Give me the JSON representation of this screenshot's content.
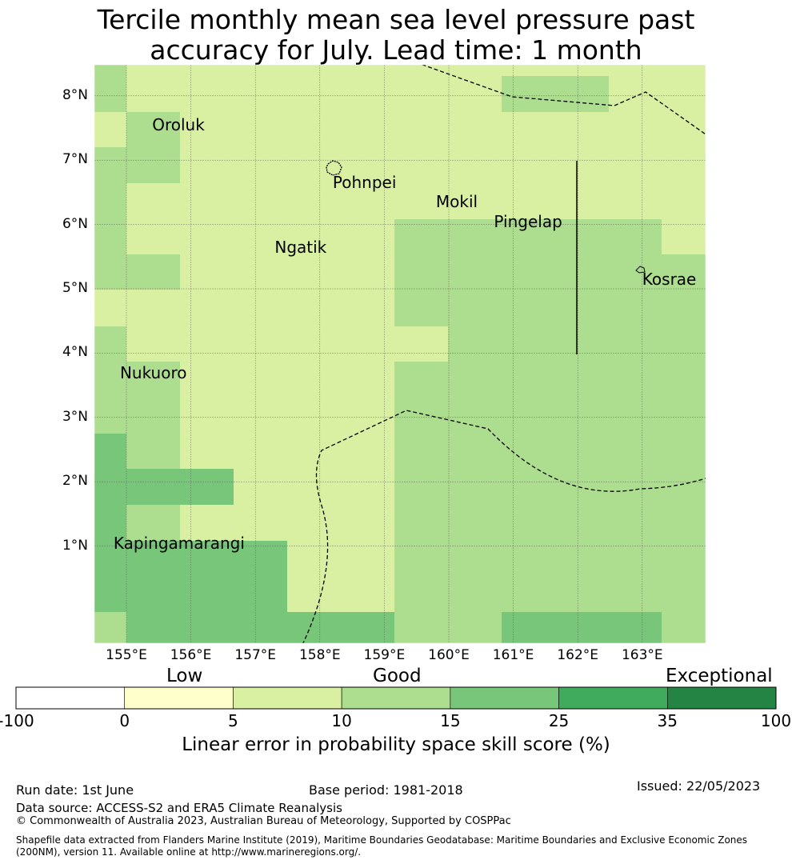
{
  "title_line1": "Tercile monthly mean sea level pressure past",
  "title_line2": "accuracy for July. Lead time: 1 month",
  "map": {
    "lat_ticks": [
      {
        "value": 8,
        "label": "8°N"
      },
      {
        "value": 7,
        "label": "7°N"
      },
      {
        "value": 6,
        "label": "6°N"
      },
      {
        "value": 5,
        "label": "5°N"
      },
      {
        "value": 4,
        "label": "4°N"
      },
      {
        "value": 3,
        "label": "3°N"
      },
      {
        "value": 2,
        "label": "2°N"
      },
      {
        "value": 1,
        "label": "1°N"
      }
    ],
    "lon_ticks": [
      {
        "value": 155,
        "label": "155°E"
      },
      {
        "value": 156,
        "label": "156°E"
      },
      {
        "value": 157,
        "label": "157°E"
      },
      {
        "value": 158,
        "label": "158°E"
      },
      {
        "value": 159,
        "label": "159°E"
      },
      {
        "value": 160,
        "label": "160°E"
      },
      {
        "value": 161,
        "label": "161°E"
      },
      {
        "value": 162,
        "label": "162°E"
      },
      {
        "value": 163,
        "label": "163°E"
      }
    ],
    "places": [
      {
        "name": "Oroluk",
        "lon": 155.4,
        "lat": 7.55
      },
      {
        "name": "Pohnpei",
        "lon": 158.2,
        "lat": 6.65
      },
      {
        "name": "Mokil",
        "lon": 159.8,
        "lat": 6.35
      },
      {
        "name": "Pingelap",
        "lon": 160.7,
        "lat": 6.05
      },
      {
        "name": "Ngatik",
        "lon": 157.3,
        "lat": 5.65
      },
      {
        "name": "Kosrae",
        "lon": 163.0,
        "lat": 5.15
      },
      {
        "name": "Nukuoro",
        "lon": 154.9,
        "lat": 3.7
      },
      {
        "name": "Kapingamarangi",
        "lon": 154.8,
        "lat": 1.05
      }
    ]
  },
  "colorbar": {
    "category_labels": [
      "Low",
      "Good",
      "Exceptional"
    ],
    "tick_labels": [
      "-100",
      "0",
      "5",
      "10",
      "15",
      "25",
      "35",
      "100"
    ],
    "colors": [
      "#ffffff",
      "#ffffcc",
      "#d9f0a3",
      "#addd8e",
      "#78c679",
      "#41ab5d",
      "#238443"
    ],
    "label": "Linear error in probability space skill score (%)"
  },
  "footer": {
    "run_date": "Run date: 1st June",
    "base_period": "Base period: 1981-2018",
    "issued": "Issued: 22/05/2023",
    "data_source": "Data source: ACCESS-S2 and ERA5 Climate Reanalysis",
    "copyright": "© Commonwealth of Australia 2023, Australian Bureau of Meteorology, Supported by COSPPac",
    "shapefile_line1": "Shapefile data extracted from Flanders Marine Institute (2019), Maritime Boundaries Geodatabase: Maritime Boundaries and Exclusive Economic Zones",
    "shapefile_line2": "(200NM), version 11. Available online at http://www.marineregions.org/."
  }
}
